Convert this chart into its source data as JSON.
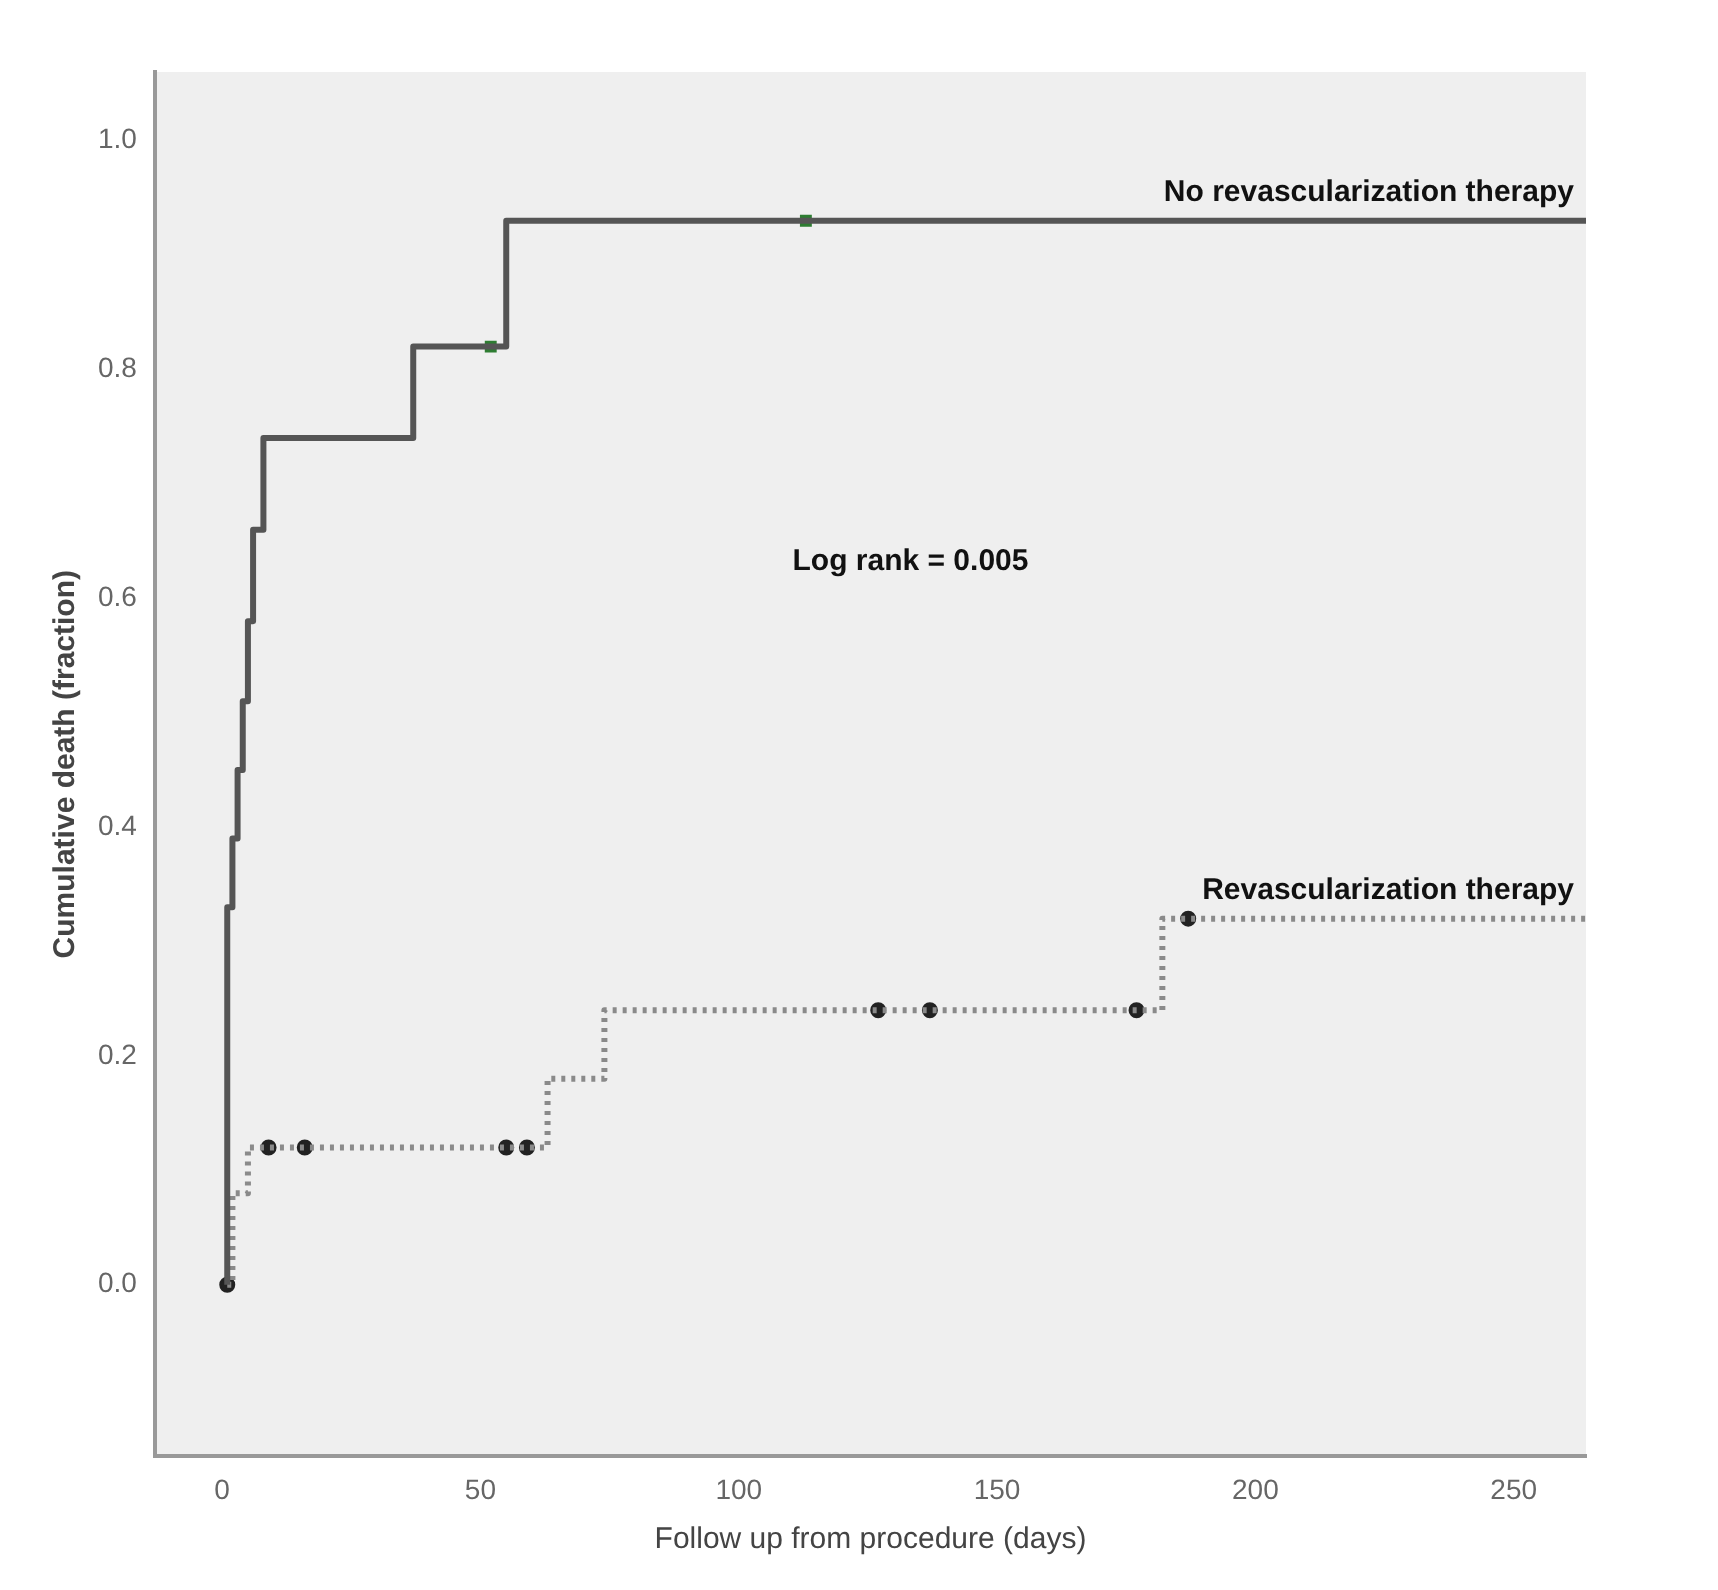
{
  "chart_data": {
    "type": "step",
    "xlabel": "Follow up from procedure (days)",
    "ylabel": "Cumulative death (fraction)",
    "xlim": [
      -13,
      264
    ],
    "xticks": [
      0,
      50,
      100,
      150,
      200,
      250
    ],
    "ylim": [
      -0.15,
      1.06
    ],
    "yticks": [
      {
        "value": 0,
        "label": "0.0"
      },
      {
        "value": 0.2,
        "label": "0.2"
      },
      {
        "value": 0.4,
        "label": "0.4"
      },
      {
        "value": 0.6,
        "label": "0.6"
      },
      {
        "value": 0.8,
        "label": "0.8"
      },
      {
        "value": 1,
        "label": "1.0"
      }
    ],
    "grid": false,
    "legend": false,
    "annotations": [
      "Log rank = 0.005"
    ],
    "series": [
      {
        "name": "No revascularization therapy",
        "color": "#555555",
        "line_style": "solid",
        "marker": "none",
        "x": [
          1,
          1,
          2,
          3,
          4,
          5,
          6,
          8,
          37,
          55,
          264
        ],
        "values": [
          0,
          0.33,
          0.39,
          0.45,
          0.51,
          0.58,
          0.66,
          0.74,
          0.82,
          0.93,
          0.93
        ]
      },
      {
        "name": "Revascularization therapy",
        "color": "#8a8a8a",
        "line_style": "dotted",
        "marker": "none",
        "x": [
          1,
          2,
          5,
          63,
          74,
          182,
          264
        ],
        "values": [
          0,
          0.08,
          0.12,
          0.18,
          0.24,
          0.32,
          0.32
        ]
      },
      {
        "type": "scatter",
        "color": "#2e7d32",
        "marker": "square",
        "x": [
          52,
          113
        ],
        "values": [
          0.82,
          0.93
        ]
      },
      {
        "type": "scatter",
        "color": "#222222",
        "marker": "circle",
        "x": [
          1,
          9,
          16,
          55,
          59,
          127,
          137,
          177,
          187
        ],
        "values": [
          0,
          0.12,
          0.12,
          0.12,
          0.12,
          0.24,
          0.24,
          0.24,
          0.32
        ]
      }
    ]
  }
}
